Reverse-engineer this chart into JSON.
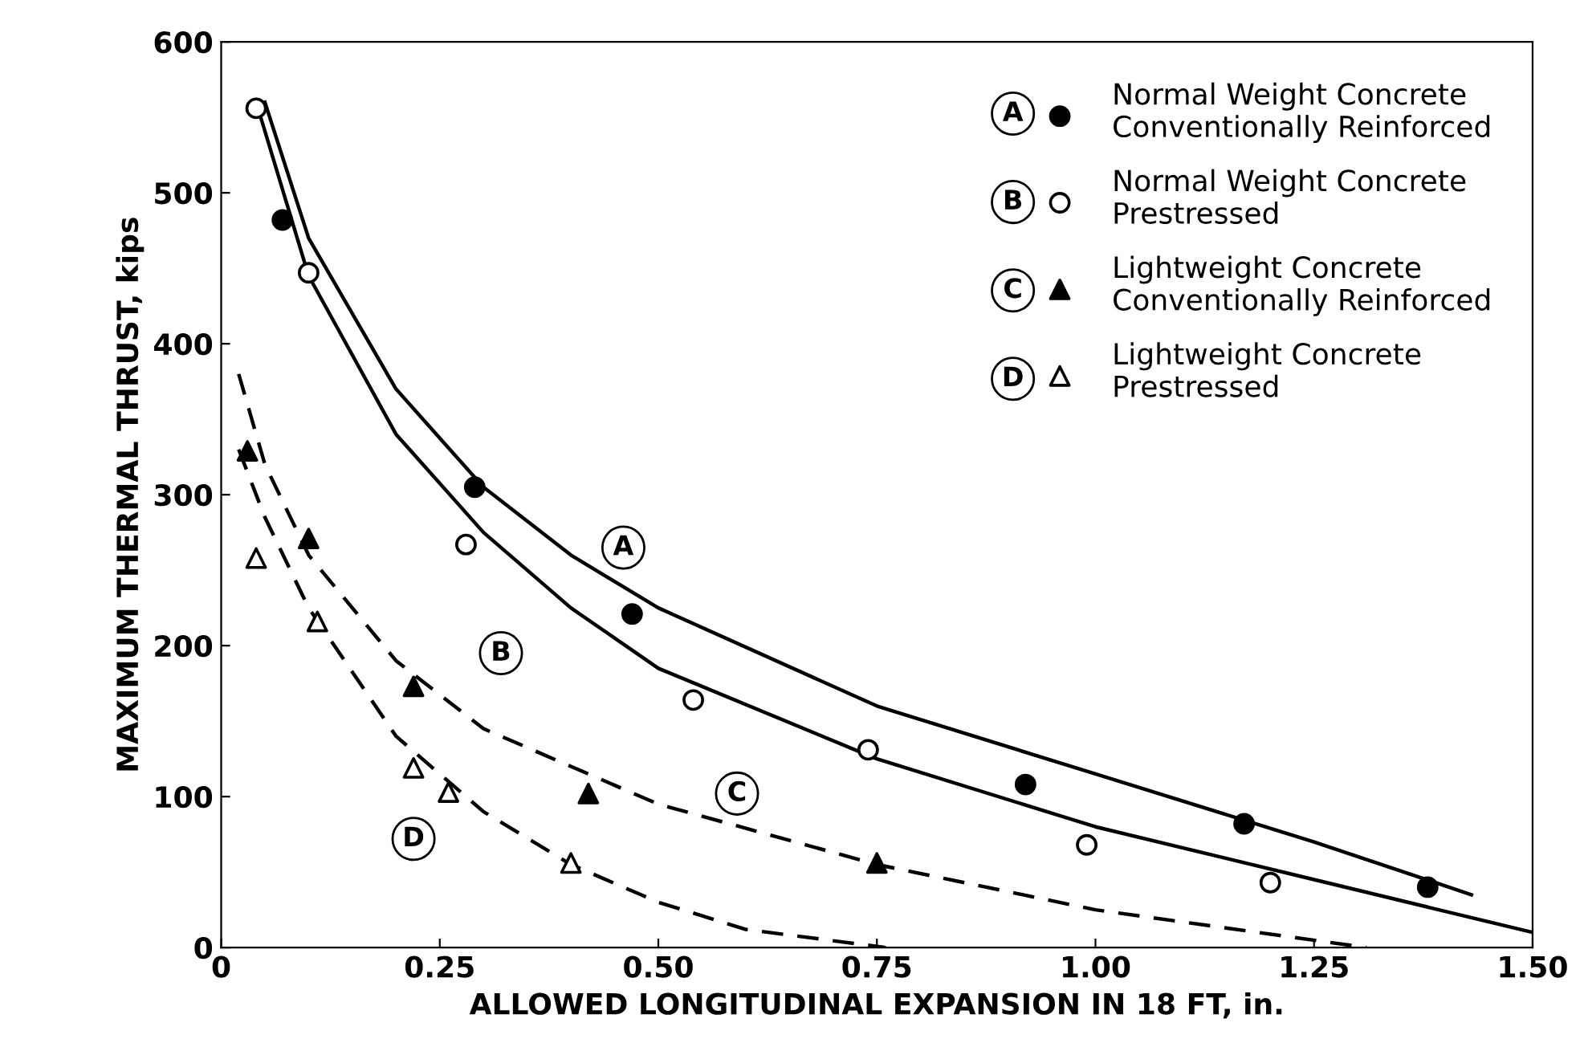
{
  "chart_data": {
    "type": "scatter",
    "xlabel": "ALLOWED LONGITUDINAL EXPANSION IN 18 FT, in.",
    "ylabel": "MAXIMUM THERMAL THRUST, kips",
    "xlim": [
      0,
      1.5
    ],
    "ylim": [
      0,
      600
    ],
    "xticks": [
      0,
      {
        "value": 0.25,
        "label": "0.25"
      },
      {
        "value": 0.5,
        "label": "0.50"
      },
      {
        "value": 0.75,
        "label": "0.75"
      },
      {
        "value": 1.0,
        "label": "1.00"
      },
      {
        "value": 1.25,
        "label": "1.25"
      },
      {
        "value": 1.5,
        "label": "1.50"
      }
    ],
    "yticks": [
      0,
      100,
      200,
      300,
      400,
      500,
      600
    ],
    "grid": false,
    "legend": "top right",
    "series": [
      {
        "type": "line",
        "color": "#000000",
        "line_style": "solid",
        "marker": "none",
        "x": [
          0.05,
          0.1,
          0.2,
          0.3,
          0.4,
          0.5,
          0.75,
          1.0,
          1.25,
          1.43
        ],
        "values": [
          560,
          470,
          370,
          305,
          260,
          225,
          160,
          115,
          70,
          35
        ]
      },
      {
        "type": "line",
        "color": "#000000",
        "line_style": "solid",
        "marker": "none",
        "x": [
          0.04,
          0.1,
          0.2,
          0.3,
          0.4,
          0.5,
          0.75,
          1.0,
          1.25,
          1.5
        ],
        "values": [
          560,
          445,
          340,
          275,
          225,
          185,
          125,
          80,
          45,
          10
        ]
      },
      {
        "type": "line",
        "color": "#000000",
        "line_style": "dashed",
        "marker": "none",
        "x": [
          0.02,
          0.05,
          0.1,
          0.2,
          0.3,
          0.5,
          0.75,
          1.0,
          1.31
        ],
        "values": [
          380,
          320,
          260,
          190,
          145,
          95,
          55,
          25,
          0
        ]
      },
      {
        "type": "line",
        "color": "#000000",
        "line_style": "dashed",
        "marker": "none",
        "x": [
          0.02,
          0.05,
          0.1,
          0.2,
          0.3,
          0.4,
          0.5,
          0.6,
          0.76
        ],
        "values": [
          330,
          285,
          225,
          140,
          90,
          55,
          30,
          12,
          0
        ]
      },
      {
        "name": "Normal Weight Concrete\nConventionally Reinforced",
        "color": "#000000",
        "marker": "circle",
        "x": [
          0.07,
          0.29,
          0.47,
          0.92,
          1.17,
          1.38
        ],
        "values": [
          482,
          305,
          221,
          108,
          82,
          40
        ]
      },
      {
        "name": "Normal Weight Concrete\nPrestressed",
        "color": "#ffffff",
        "marker": "circle",
        "x": [
          0.04,
          0.1,
          0.28,
          0.54,
          0.74,
          0.99,
          1.2
        ],
        "values": [
          556,
          447,
          267,
          164,
          131,
          68,
          43
        ]
      },
      {
        "name": "Lightweight Concrete\nConventionally Reinforced",
        "color": "#000000",
        "marker": "triangle",
        "x": [
          0.03,
          0.1,
          0.22,
          0.42,
          0.75
        ],
        "values": [
          329,
          271,
          173,
          102,
          56
        ]
      },
      {
        "name": "Lightweight Concrete\nPrestressed",
        "color": "#ffffff",
        "marker": "triangle",
        "x": [
          0.04,
          0.11,
          0.22,
          0.26,
          0.4
        ],
        "values": [
          258,
          216,
          119,
          103,
          56
        ]
      }
    ],
    "annotations": [
      {
        "text": "A",
        "x": 0.46,
        "y": 265
      },
      {
        "text": "B",
        "x": 0.32,
        "y": 195
      },
      {
        "text": "C",
        "x": 0.59,
        "y": 102
      },
      {
        "text": "D",
        "x": 0.22,
        "y": 72
      }
    ]
  }
}
